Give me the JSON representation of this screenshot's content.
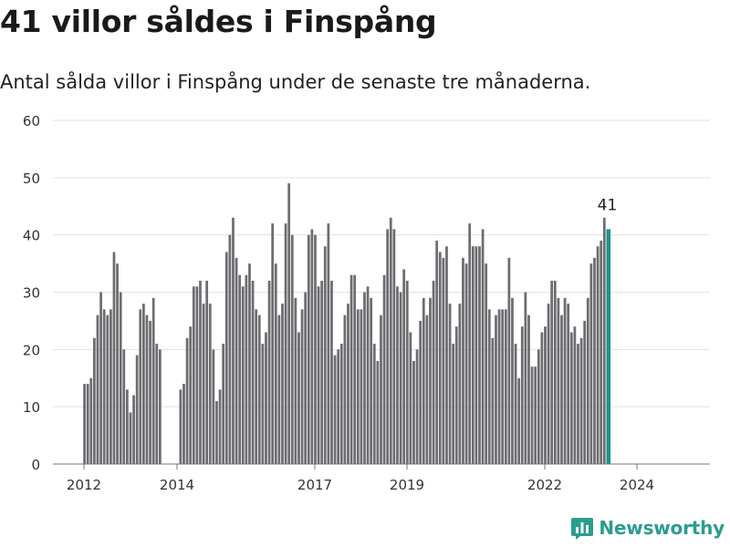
{
  "header": {
    "title": "41 villor såldes i Finspång",
    "subtitle": "Antal sålda villor i Finspång under de senaste tre månaderna."
  },
  "branding": {
    "name": "Newsworthy",
    "icon": "bar-chart-logo-icon",
    "color": "#2a9d8f"
  },
  "chart_data": {
    "type": "bar",
    "title": "41 villor såldes i Finspång",
    "subtitle": "Antal sålda villor i Finspång under de senaste tre månaderna.",
    "xlabel": "",
    "ylabel": "",
    "ylim": [
      0,
      60
    ],
    "yticks": [
      0,
      10,
      20,
      30,
      40,
      50,
      60
    ],
    "xticks": [
      "2012",
      "2014",
      "2017",
      "2019",
      "2022",
      "2024"
    ],
    "grid": true,
    "bar_color": "#6d6c70",
    "highlight_color": "#1f9388",
    "highlight_label": "41",
    "series": [
      {
        "period": "2012",
        "values": [
          14,
          14,
          15,
          22,
          26,
          30,
          27,
          26,
          27,
          37,
          35,
          30,
          20,
          13,
          9,
          12,
          19,
          27,
          28,
          26,
          25,
          29,
          21,
          20
        ]
      },
      {
        "period": "2014",
        "values": [
          13,
          14,
          22,
          24,
          31,
          31,
          32,
          28,
          32,
          28,
          20,
          11,
          13,
          21,
          37,
          40,
          43,
          36,
          33,
          31,
          33,
          35,
          32,
          27,
          26,
          21,
          23,
          32,
          42,
          35,
          26,
          28,
          42,
          49,
          40,
          29,
          23,
          27,
          30,
          40,
          41,
          40,
          31,
          32,
          38,
          42,
          32,
          19,
          20,
          21,
          26,
          28,
          33,
          33,
          27,
          27,
          30,
          31,
          29,
          21,
          18,
          26,
          33,
          41,
          43,
          41,
          31,
          30,
          34,
          32,
          23,
          18,
          20,
          25,
          29,
          26,
          29,
          32,
          39,
          37,
          36,
          38,
          28,
          21,
          24,
          28,
          36,
          35,
          42,
          38,
          38,
          38,
          41,
          35,
          27,
          22,
          26,
          27,
          27,
          27,
          36,
          29,
          21,
          15,
          24,
          30,
          26,
          17,
          17,
          20,
          23,
          24,
          28,
          32,
          32,
          29,
          26,
          29,
          28,
          23,
          24,
          21,
          22,
          25,
          29,
          35,
          36,
          38,
          39,
          43,
          41
        ]
      }
    ]
  }
}
